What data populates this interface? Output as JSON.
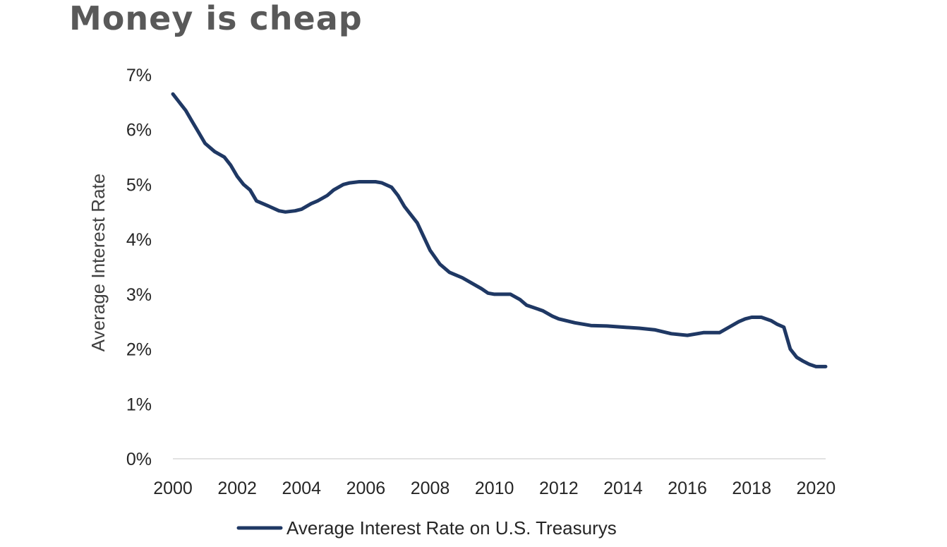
{
  "page": {
    "title": "Money is cheap"
  },
  "chart_data": {
    "type": "line",
    "title": "",
    "ylabel": "Average Interest Rate",
    "xlabel": "",
    "xlim": [
      2000,
      2020.3
    ],
    "ylim": [
      0,
      7
    ],
    "x_ticks": [
      2000,
      2002,
      2004,
      2006,
      2008,
      2010,
      2012,
      2014,
      2016,
      2018,
      2020
    ],
    "x_tick_labels": [
      "2000",
      "2002",
      "2004",
      "2006",
      "2008",
      "2010",
      "2012",
      "2014",
      "2016",
      "2018",
      "2020"
    ],
    "y_ticks": [
      0,
      1,
      2,
      3,
      4,
      5,
      6,
      7
    ],
    "y_tick_labels": [
      "0%",
      "1%",
      "2%",
      "3%",
      "4%",
      "5%",
      "6%",
      "7%"
    ],
    "grid": false,
    "legend_position": "bottom",
    "series": [
      {
        "name": "Average Interest Rate on U.S. Treasurys",
        "color": "#1F3864",
        "x": [
          2000.0,
          2000.2,
          2000.4,
          2000.6,
          2000.8,
          2001.0,
          2001.3,
          2001.6,
          2001.8,
          2002.0,
          2002.2,
          2002.4,
          2002.6,
          2002.8,
          2003.0,
          2003.3,
          2003.5,
          2003.8,
          2004.0,
          2004.3,
          2004.5,
          2004.8,
          2005.0,
          2005.3,
          2005.5,
          2005.8,
          2006.0,
          2006.3,
          2006.5,
          2006.8,
          2007.0,
          2007.2,
          2007.4,
          2007.6,
          2007.8,
          2008.0,
          2008.3,
          2008.6,
          2008.8,
          2009.0,
          2009.3,
          2009.6,
          2009.8,
          2010.0,
          2010.5,
          2010.8,
          2011.0,
          2011.5,
          2011.8,
          2012.0,
          2012.5,
          2013.0,
          2013.5,
          2014.0,
          2014.5,
          2015.0,
          2015.5,
          2016.0,
          2016.5,
          2017.0,
          2017.3,
          2017.6,
          2017.8,
          2018.0,
          2018.3,
          2018.6,
          2018.8,
          2019.0,
          2019.2,
          2019.4,
          2019.6,
          2019.8,
          2020.0,
          2020.3
        ],
        "y": [
          6.65,
          6.5,
          6.35,
          6.15,
          5.95,
          5.75,
          5.6,
          5.5,
          5.35,
          5.15,
          5.0,
          4.9,
          4.7,
          4.65,
          4.6,
          4.52,
          4.5,
          4.52,
          4.55,
          4.65,
          4.7,
          4.8,
          4.9,
          5.0,
          5.03,
          5.05,
          5.05,
          5.05,
          5.03,
          4.95,
          4.8,
          4.6,
          4.45,
          4.3,
          4.05,
          3.8,
          3.55,
          3.4,
          3.35,
          3.3,
          3.2,
          3.1,
          3.02,
          3.0,
          3.0,
          2.9,
          2.8,
          2.7,
          2.6,
          2.55,
          2.48,
          2.43,
          2.42,
          2.4,
          2.38,
          2.35,
          2.28,
          2.25,
          2.3,
          2.3,
          2.4,
          2.5,
          2.55,
          2.58,
          2.58,
          2.52,
          2.45,
          2.4,
          2.0,
          1.85,
          1.78,
          1.72,
          1.68,
          1.68
        ]
      }
    ]
  }
}
